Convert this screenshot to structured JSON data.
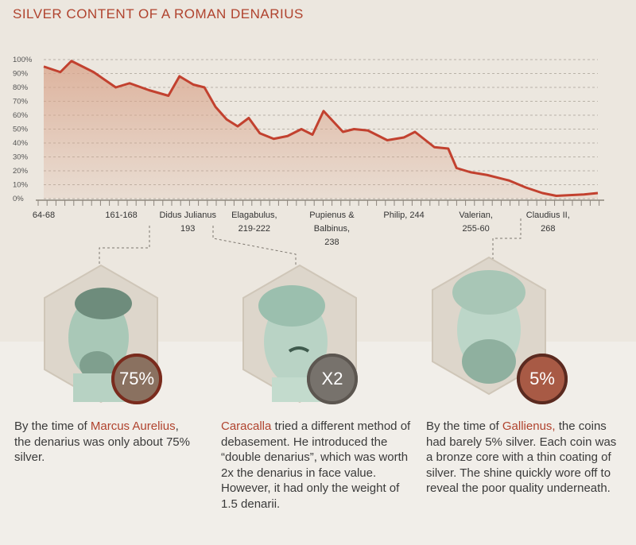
{
  "title": "SILVER CONTENT OF A ROMAN DENARIUS",
  "chart_data": {
    "type": "area",
    "title": "SILVER CONTENT OF A ROMAN DENARIUS",
    "ylim": [
      0,
      100
    ],
    "y_ticks": [
      "100%",
      "90%",
      "80%",
      "70%",
      "60%",
      "50%",
      "40%",
      "30%",
      "20%",
      "10%",
      "0%"
    ],
    "x_range": [
      0,
      100
    ],
    "x_labels": [
      {
        "lines": [
          "64-68"
        ],
        "x": 0
      },
      {
        "lines": [
          "161-168"
        ],
        "x": 14
      },
      {
        "lines": [
          "Didus Julianus",
          "193"
        ],
        "x": 26
      },
      {
        "lines": [
          "Elagabulus,",
          "219-222"
        ],
        "x": 38
      },
      {
        "lines": [
          "Pupienus &",
          "Balbinus,",
          "238"
        ],
        "x": 52
      },
      {
        "lines": [
          "Philip, 244"
        ],
        "x": 65
      },
      {
        "lines": [
          "Valerian,",
          "255-60"
        ],
        "x": 78
      },
      {
        "lines": [
          "Claudius II,",
          "268"
        ],
        "x": 91
      }
    ],
    "series": [
      {
        "points": [
          [
            0,
            95
          ],
          [
            3,
            91
          ],
          [
            5,
            99
          ],
          [
            9,
            91
          ],
          [
            13,
            80
          ],
          [
            15.5,
            83
          ],
          [
            19,
            78
          ],
          [
            22.5,
            74
          ],
          [
            24.5,
            88
          ],
          [
            27,
            82
          ],
          [
            29,
            80
          ],
          [
            31,
            66
          ],
          [
            33,
            57
          ],
          [
            35,
            52
          ],
          [
            37,
            58
          ],
          [
            39,
            47
          ],
          [
            41.5,
            43
          ],
          [
            44,
            45
          ],
          [
            46.5,
            50
          ],
          [
            48.5,
            46
          ],
          [
            50.5,
            63
          ],
          [
            54,
            48
          ],
          [
            56,
            50
          ],
          [
            58.5,
            49
          ],
          [
            62,
            42
          ],
          [
            65,
            44
          ],
          [
            67,
            48
          ],
          [
            70.5,
            37
          ],
          [
            73,
            36
          ],
          [
            74.5,
            22
          ],
          [
            77,
            19
          ],
          [
            80,
            17
          ],
          [
            84,
            13
          ],
          [
            87,
            8
          ],
          [
            90,
            4
          ],
          [
            92.5,
            2
          ],
          [
            95,
            2.5
          ],
          [
            97.5,
            3
          ],
          [
            100,
            4
          ]
        ]
      }
    ],
    "grid": true,
    "line_color": "#c2412f",
    "fill_color": "#d9a58c"
  },
  "cards": [
    {
      "coin": "75%",
      "text_highlight": "Marcus Aurelius",
      "text_before": "By the time of ",
      "text_after": ", the denarius was only about 75% silver."
    },
    {
      "coin": "X2",
      "text_highlight": "Caracalla",
      "text_before": "",
      "text_after": " tried a different method of debasement. He introduced the “double denarius”, which was worth 2x the denarius in face value. However, it had only the weight of 1.5 denarii."
    },
    {
      "coin": "5%",
      "text_highlight": "Gallienus,",
      "text_before": "By the time of ",
      "text_after": " the coins had barely 5% silver. Each coin was a bronze core with a thin coating of silver. The shine quickly wore off to reveal the poor quality underneath."
    }
  ]
}
